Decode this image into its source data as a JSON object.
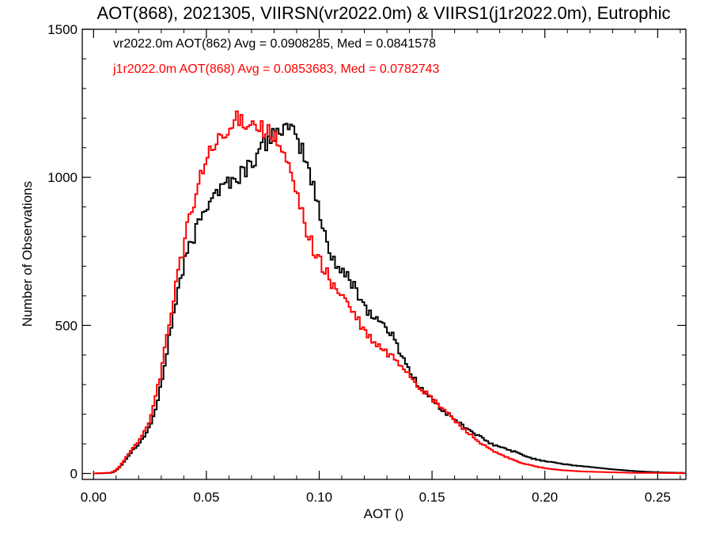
{
  "chart_data": {
    "type": "line",
    "title": "AOT(868), 2021305, VIIRSN(vr2022.0m) & VIIRS1(j1r2022.0m), Eutrophic",
    "xlabel": "AOT ()",
    "ylabel": "Number of Observations",
    "xlim": [
      -0.005,
      0.2625
    ],
    "ylim": [
      -20,
      1500
    ],
    "xticks": [
      0.0,
      0.05,
      0.1,
      0.15,
      0.2,
      0.25
    ],
    "xtick_labels": [
      "0.00",
      "0.05",
      "0.10",
      "0.15",
      "0.20",
      "0.25"
    ],
    "yticks": [
      0,
      500,
      1000,
      1500
    ],
    "ytick_labels": [
      "0",
      "500",
      "1000",
      "1500"
    ],
    "grid": false,
    "step_style": "histogram",
    "legend_position": "top-left",
    "series": [
      {
        "legend": "vr2022.0m AOT(862) Avg = 0.0908285, Med = 0.0841578",
        "color": "#000000",
        "points": [
          [
            0.0,
            0
          ],
          [
            0.008,
            2
          ],
          [
            0.01,
            10
          ],
          [
            0.012,
            25
          ],
          [
            0.014,
            45
          ],
          [
            0.016,
            65
          ],
          [
            0.018,
            85
          ],
          [
            0.02,
            100
          ],
          [
            0.022,
            120
          ],
          [
            0.024,
            145
          ],
          [
            0.026,
            180
          ],
          [
            0.028,
            230
          ],
          [
            0.03,
            300
          ],
          [
            0.032,
            390
          ],
          [
            0.034,
            480
          ],
          [
            0.036,
            560
          ],
          [
            0.038,
            640
          ],
          [
            0.04,
            700
          ],
          [
            0.042,
            750
          ],
          [
            0.044,
            790
          ],
          [
            0.046,
            830
          ],
          [
            0.048,
            870
          ],
          [
            0.05,
            910
          ],
          [
            0.052,
            940
          ],
          [
            0.054,
            960
          ],
          [
            0.056,
            955
          ],
          [
            0.058,
            975
          ],
          [
            0.06,
            990
          ],
          [
            0.062,
            985
          ],
          [
            0.064,
            1000
          ],
          [
            0.066,
            1020
          ],
          [
            0.068,
            1030
          ],
          [
            0.07,
            1050
          ],
          [
            0.072,
            1070
          ],
          [
            0.074,
            1090
          ],
          [
            0.076,
            1110
          ],
          [
            0.078,
            1130
          ],
          [
            0.08,
            1150
          ],
          [
            0.082,
            1160
          ],
          [
            0.084,
            1165
          ],
          [
            0.086,
            1160
          ],
          [
            0.088,
            1150
          ],
          [
            0.09,
            1130
          ],
          [
            0.092,
            1100
          ],
          [
            0.094,
            1060
          ],
          [
            0.096,
            1010
          ],
          [
            0.098,
            950
          ],
          [
            0.1,
            880
          ],
          [
            0.102,
            820
          ],
          [
            0.104,
            770
          ],
          [
            0.106,
            730
          ],
          [
            0.108,
            700
          ],
          [
            0.11,
            680
          ],
          [
            0.112,
            665
          ],
          [
            0.114,
            650
          ],
          [
            0.116,
            630
          ],
          [
            0.118,
            600
          ],
          [
            0.12,
            570
          ],
          [
            0.122,
            545
          ],
          [
            0.124,
            530
          ],
          [
            0.126,
            520
          ],
          [
            0.128,
            505
          ],
          [
            0.13,
            490
          ],
          [
            0.132,
            470
          ],
          [
            0.134,
            440
          ],
          [
            0.136,
            410
          ],
          [
            0.138,
            380
          ],
          [
            0.14,
            350
          ],
          [
            0.142,
            320
          ],
          [
            0.144,
            300
          ],
          [
            0.146,
            280
          ],
          [
            0.148,
            265
          ],
          [
            0.15,
            250
          ],
          [
            0.152,
            235
          ],
          [
            0.154,
            220
          ],
          [
            0.156,
            205
          ],
          [
            0.158,
            195
          ],
          [
            0.16,
            185
          ],
          [
            0.162,
            170
          ],
          [
            0.164,
            160
          ],
          [
            0.166,
            150
          ],
          [
            0.168,
            140
          ],
          [
            0.17,
            130
          ],
          [
            0.172,
            120
          ],
          [
            0.174,
            110
          ],
          [
            0.176,
            100
          ],
          [
            0.178,
            95
          ],
          [
            0.18,
            90
          ],
          [
            0.182,
            85
          ],
          [
            0.184,
            80
          ],
          [
            0.186,
            75
          ],
          [
            0.188,
            70
          ],
          [
            0.19,
            62
          ],
          [
            0.192,
            58
          ],
          [
            0.194,
            52
          ],
          [
            0.196,
            48
          ],
          [
            0.198,
            45
          ],
          [
            0.2,
            42
          ],
          [
            0.204,
            38
          ],
          [
            0.208,
            32
          ],
          [
            0.212,
            28
          ],
          [
            0.216,
            25
          ],
          [
            0.22,
            22
          ],
          [
            0.225,
            18
          ],
          [
            0.23,
            14
          ],
          [
            0.235,
            11
          ],
          [
            0.24,
            8
          ],
          [
            0.245,
            6
          ],
          [
            0.25,
            4
          ],
          [
            0.255,
            3
          ],
          [
            0.262,
            2
          ]
        ]
      },
      {
        "legend": "j1r2022.0m AOT(868) Avg = 0.0853683, Med = 0.0782743",
        "color": "#ff0000",
        "points": [
          [
            0.0,
            0
          ],
          [
            0.008,
            3
          ],
          [
            0.01,
            12
          ],
          [
            0.012,
            28
          ],
          [
            0.014,
            50
          ],
          [
            0.016,
            70
          ],
          [
            0.018,
            90
          ],
          [
            0.02,
            110
          ],
          [
            0.022,
            135
          ],
          [
            0.024,
            165
          ],
          [
            0.026,
            210
          ],
          [
            0.028,
            270
          ],
          [
            0.03,
            350
          ],
          [
            0.032,
            440
          ],
          [
            0.034,
            530
          ],
          [
            0.036,
            620
          ],
          [
            0.038,
            700
          ],
          [
            0.04,
            770
          ],
          [
            0.042,
            840
          ],
          [
            0.044,
            900
          ],
          [
            0.046,
            960
          ],
          [
            0.048,
            1010
          ],
          [
            0.05,
            1060
          ],
          [
            0.052,
            1090
          ],
          [
            0.054,
            1110
          ],
          [
            0.056,
            1120
          ],
          [
            0.058,
            1130
          ],
          [
            0.06,
            1150
          ],
          [
            0.062,
            1180
          ],
          [
            0.064,
            1200
          ],
          [
            0.066,
            1195
          ],
          [
            0.068,
            1190
          ],
          [
            0.07,
            1185
          ],
          [
            0.072,
            1180
          ],
          [
            0.074,
            1170
          ],
          [
            0.076,
            1160
          ],
          [
            0.078,
            1150
          ],
          [
            0.08,
            1130
          ],
          [
            0.082,
            1110
          ],
          [
            0.084,
            1080
          ],
          [
            0.086,
            1040
          ],
          [
            0.088,
            990
          ],
          [
            0.09,
            940
          ],
          [
            0.092,
            890
          ],
          [
            0.094,
            840
          ],
          [
            0.096,
            790
          ],
          [
            0.098,
            750
          ],
          [
            0.1,
            720
          ],
          [
            0.102,
            690
          ],
          [
            0.104,
            665
          ],
          [
            0.106,
            640
          ],
          [
            0.108,
            620
          ],
          [
            0.11,
            600
          ],
          [
            0.112,
            580
          ],
          [
            0.114,
            555
          ],
          [
            0.116,
            530
          ],
          [
            0.118,
            505
          ],
          [
            0.12,
            480
          ],
          [
            0.122,
            460
          ],
          [
            0.124,
            445
          ],
          [
            0.126,
            430
          ],
          [
            0.128,
            420
          ],
          [
            0.13,
            405
          ],
          [
            0.132,
            395
          ],
          [
            0.134,
            385
          ],
          [
            0.136,
            370
          ],
          [
            0.138,
            355
          ],
          [
            0.14,
            335
          ],
          [
            0.142,
            315
          ],
          [
            0.144,
            295
          ],
          [
            0.146,
            280
          ],
          [
            0.148,
            265
          ],
          [
            0.15,
            250
          ],
          [
            0.152,
            238
          ],
          [
            0.154,
            225
          ],
          [
            0.156,
            210
          ],
          [
            0.158,
            195
          ],
          [
            0.16,
            180
          ],
          [
            0.162,
            165
          ],
          [
            0.164,
            150
          ],
          [
            0.166,
            140
          ],
          [
            0.168,
            125
          ],
          [
            0.17,
            112
          ],
          [
            0.172,
            100
          ],
          [
            0.174,
            90
          ],
          [
            0.176,
            80
          ],
          [
            0.178,
            72
          ],
          [
            0.18,
            65
          ],
          [
            0.182,
            58
          ],
          [
            0.184,
            52
          ],
          [
            0.186,
            46
          ],
          [
            0.188,
            40
          ],
          [
            0.19,
            35
          ],
          [
            0.192,
            31
          ],
          [
            0.194,
            27
          ],
          [
            0.196,
            24
          ],
          [
            0.198,
            21
          ],
          [
            0.2,
            18
          ],
          [
            0.204,
            14
          ],
          [
            0.208,
            11
          ],
          [
            0.212,
            9
          ],
          [
            0.216,
            7
          ],
          [
            0.22,
            6
          ],
          [
            0.225,
            5
          ],
          [
            0.23,
            4
          ],
          [
            0.235,
            3
          ],
          [
            0.24,
            2
          ],
          [
            0.25,
            2
          ],
          [
            0.262,
            1
          ]
        ]
      }
    ]
  }
}
